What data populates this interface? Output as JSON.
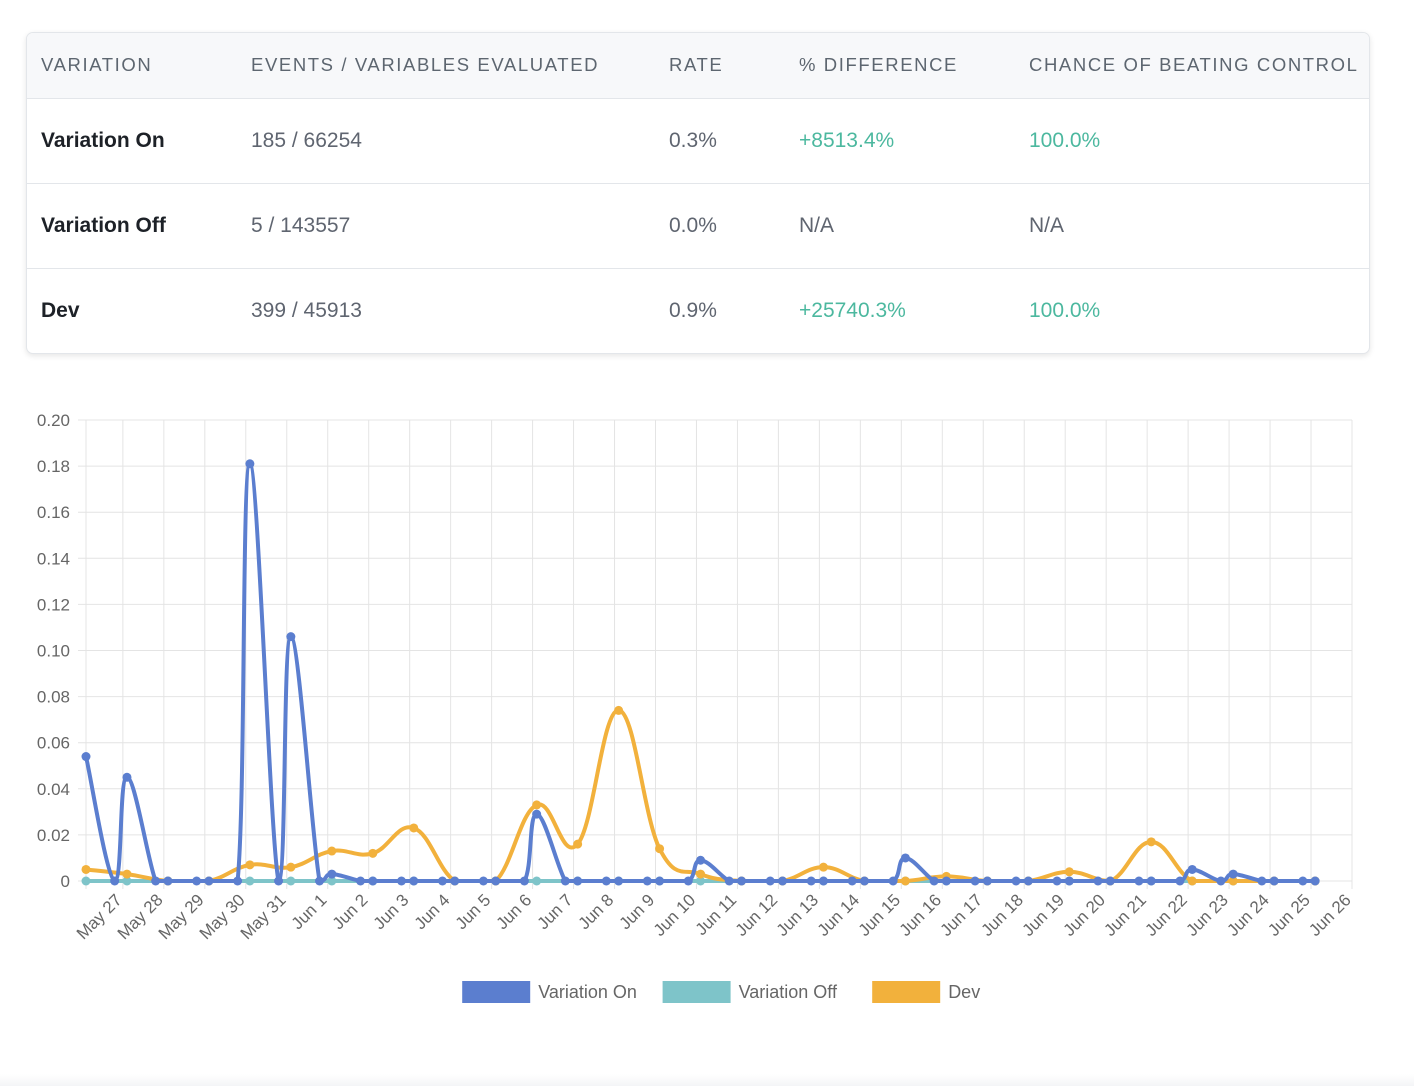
{
  "table": {
    "headers": {
      "variation": "VARIATION",
      "events": "EVENTS / VARIABLES EVALUATED",
      "rate": "RATE",
      "difference": "% DIFFERENCE",
      "chance": "CHANCE OF BEATING CONTROL"
    },
    "rows": [
      {
        "name": "Variation On",
        "events": "185 / 66254",
        "rate": "0.3%",
        "difference": "+8513.4%",
        "chance": "100.0%"
      },
      {
        "name": "Variation Off",
        "events": "5 / 143557",
        "rate": "0.0%",
        "difference": "N/A",
        "chance": "N/A"
      },
      {
        "name": "Dev",
        "events": "399 / 45913",
        "rate": "0.9%",
        "difference": "+25740.3%",
        "chance": "100.0%"
      }
    ],
    "colors": {
      "positive": "#4cb89f",
      "name": "#1d2127",
      "muted": "#5f6570"
    }
  },
  "chart_data": {
    "type": "line",
    "ylim": [
      0,
      0.2
    ],
    "y_ticks": [
      "0.20",
      "0.18",
      "0.16",
      "0.14",
      "0.12",
      "0.10",
      "0.08",
      "0.06",
      "0.04",
      "0.02",
      "0"
    ],
    "y_tick_values": [
      0.2,
      0.18,
      0.16,
      0.14,
      0.12,
      0.1,
      0.08,
      0.06,
      0.04,
      0.02,
      0
    ],
    "x_labels": [
      "May 27",
      "May 28",
      "May 29",
      "May 30",
      "May 31",
      "Jun 1",
      "Jun 2",
      "Jun 3",
      "Jun 4",
      "Jun 5",
      "Jun 6",
      "Jun 7",
      "Jun 8",
      "Jun 9",
      "Jun 10",
      "Jun 11",
      "Jun 12",
      "Jun 13",
      "Jun 14",
      "Jun 15",
      "Jun 16",
      "Jun 17",
      "Jun 18",
      "Jun 19",
      "Jun 20",
      "Jun 21",
      "Jun 22",
      "Jun 23",
      "Jun 24",
      "Jun 25",
      "Jun 26"
    ],
    "x_range": [
      26.1,
      57.0
    ],
    "grid": true,
    "legend": "bottom",
    "series": [
      {
        "name": "Variation On",
        "color": "#5b7ecf",
        "points": [
          [
            26.1,
            0.054
          ],
          [
            26.8,
            0
          ],
          [
            27.1,
            0.045
          ],
          [
            27.8,
            0
          ],
          [
            28.1,
            0
          ],
          [
            28.8,
            0
          ],
          [
            29.1,
            0
          ],
          [
            29.8,
            0
          ],
          [
            30.1,
            0.181
          ],
          [
            30.8,
            0
          ],
          [
            31.1,
            0.106
          ],
          [
            31.8,
            0
          ],
          [
            32.1,
            0.003
          ],
          [
            32.8,
            0
          ],
          [
            33.1,
            0
          ],
          [
            33.8,
            0
          ],
          [
            34.1,
            0
          ],
          [
            34.8,
            0
          ],
          [
            35.1,
            0
          ],
          [
            35.8,
            0
          ],
          [
            36.1,
            0
          ],
          [
            36.8,
            0
          ],
          [
            37.1,
            0.029
          ],
          [
            37.8,
            0
          ],
          [
            38.1,
            0
          ],
          [
            38.8,
            0
          ],
          [
            39.1,
            0
          ],
          [
            39.8,
            0
          ],
          [
            40.1,
            0
          ],
          [
            40.8,
            0
          ],
          [
            41.1,
            0.009
          ],
          [
            41.8,
            0
          ],
          [
            42.1,
            0
          ],
          [
            42.8,
            0
          ],
          [
            43.1,
            0
          ],
          [
            43.8,
            0
          ],
          [
            44.1,
            0
          ],
          [
            44.8,
            0
          ],
          [
            45.1,
            0
          ],
          [
            45.8,
            0
          ],
          [
            46.1,
            0.01
          ],
          [
            46.8,
            0
          ],
          [
            47.1,
            0
          ],
          [
            47.8,
            0
          ],
          [
            48.1,
            0
          ],
          [
            48.8,
            0
          ],
          [
            49.1,
            0
          ],
          [
            49.8,
            0
          ],
          [
            50.1,
            0
          ],
          [
            50.8,
            0
          ],
          [
            51.1,
            0
          ],
          [
            51.8,
            0
          ],
          [
            52.1,
            0
          ],
          [
            52.8,
            0
          ],
          [
            53.1,
            0.005
          ],
          [
            53.8,
            0
          ],
          [
            54.1,
            0.003
          ],
          [
            54.8,
            0
          ],
          [
            55.1,
            0
          ],
          [
            55.8,
            0
          ],
          [
            56.1,
            0
          ]
        ]
      },
      {
        "name": "Variation Off",
        "color": "#7ec4c9",
        "points": [
          [
            26.1,
            0
          ],
          [
            27.1,
            0
          ],
          [
            28.1,
            0
          ],
          [
            29.1,
            0
          ],
          [
            30.1,
            0
          ],
          [
            31.1,
            0
          ],
          [
            32.1,
            0
          ],
          [
            33.1,
            0
          ],
          [
            34.1,
            0
          ],
          [
            35.1,
            0
          ],
          [
            36.1,
            0
          ],
          [
            37.1,
            0
          ],
          [
            38.1,
            0
          ],
          [
            39.1,
            0
          ],
          [
            40.1,
            0
          ],
          [
            41.1,
            0
          ],
          [
            42.1,
            0
          ],
          [
            43.1,
            0
          ],
          [
            44.1,
            0
          ],
          [
            45.1,
            0
          ],
          [
            46.1,
            0
          ],
          [
            47.1,
            0
          ],
          [
            48.1,
            0
          ],
          [
            49.1,
            0
          ],
          [
            50.1,
            0
          ],
          [
            51.1,
            0
          ],
          [
            52.1,
            0
          ],
          [
            53.1,
            0
          ],
          [
            54.1,
            0
          ],
          [
            55.1,
            0
          ],
          [
            56.1,
            0
          ]
        ]
      },
      {
        "name": "Dev",
        "color": "#f2b13c",
        "points": [
          [
            26.1,
            0.005
          ],
          [
            27.1,
            0.003
          ],
          [
            28.1,
            0
          ],
          [
            29.1,
            0
          ],
          [
            30.1,
            0.007
          ],
          [
            31.1,
            0.006
          ],
          [
            32.1,
            0.013
          ],
          [
            33.1,
            0.012
          ],
          [
            34.1,
            0.023
          ],
          [
            35.1,
            0
          ],
          [
            36.1,
            0
          ],
          [
            37.1,
            0.033
          ],
          [
            38.1,
            0.016
          ],
          [
            39.1,
            0.074
          ],
          [
            40.1,
            0.014
          ],
          [
            41.1,
            0.003
          ],
          [
            42.1,
            0
          ],
          [
            43.1,
            0
          ],
          [
            44.1,
            0.006
          ],
          [
            45.1,
            0
          ],
          [
            46.1,
            0
          ],
          [
            47.1,
            0.002
          ],
          [
            48.1,
            0
          ],
          [
            49.1,
            0
          ],
          [
            50.1,
            0.004
          ],
          [
            51.1,
            0
          ],
          [
            52.1,
            0.017
          ],
          [
            53.1,
            0
          ],
          [
            54.1,
            0
          ],
          [
            55.1,
            0
          ],
          [
            56.1,
            0
          ]
        ]
      }
    ]
  }
}
